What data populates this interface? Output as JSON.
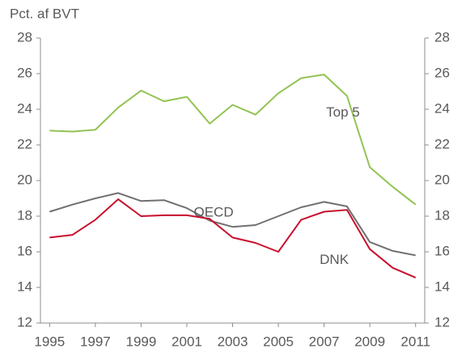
{
  "chart_data": {
    "type": "line",
    "y_label": "Pct. af BVT",
    "x": [
      1995,
      1996,
      1997,
      1998,
      1999,
      2000,
      2001,
      2002,
      2003,
      2004,
      2005,
      2006,
      2007,
      2008,
      2009,
      2010,
      2011
    ],
    "xlim": [
      1994.6,
      2011.4
    ],
    "xticks": [
      1995,
      1997,
      1999,
      2001,
      2003,
      2005,
      2007,
      2009,
      2011
    ],
    "ylim": [
      12,
      28
    ],
    "yticks": [
      12,
      14,
      16,
      18,
      20,
      22,
      24,
      26,
      28
    ],
    "y2lim": [
      12,
      28
    ],
    "y2ticks": [
      12,
      14,
      16,
      18,
      20,
      22,
      24,
      26,
      28
    ],
    "grid": false,
    "series": [
      {
        "name": "Top 5",
        "color": "#92c353",
        "values": [
          22.8,
          22.75,
          22.85,
          24.1,
          25.05,
          24.45,
          24.7,
          23.2,
          24.25,
          23.7,
          24.9,
          25.75,
          25.95,
          24.75,
          20.75,
          19.65,
          18.65
        ]
      },
      {
        "name": "OECD",
        "color": "#707070",
        "values": [
          18.25,
          18.65,
          19.0,
          19.3,
          18.85,
          18.9,
          18.45,
          17.75,
          17.4,
          17.5,
          18.0,
          18.5,
          18.8,
          18.55,
          16.55,
          16.05,
          15.8
        ]
      },
      {
        "name": "DNK",
        "color": "#c8102e",
        "values": [
          16.8,
          16.95,
          17.8,
          18.95,
          18.0,
          18.05,
          18.05,
          17.85,
          16.8,
          16.5,
          16.0,
          17.8,
          18.25,
          18.35,
          16.15,
          15.1,
          14.55
        ]
      }
    ]
  }
}
